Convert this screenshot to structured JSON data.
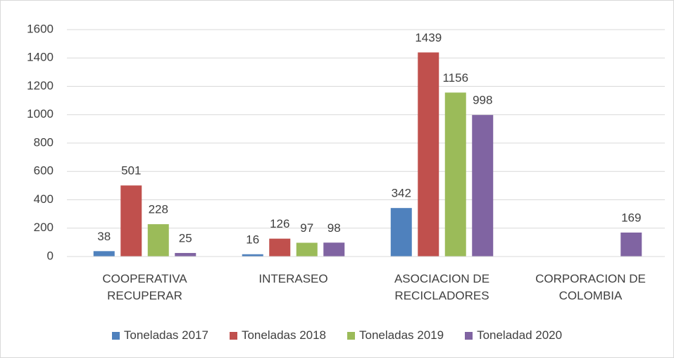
{
  "chart_data": {
    "type": "bar",
    "categories": [
      "COOPERATIVA RECUPERAR",
      "INTERASEO",
      "ASOCIACION DE RECICLADORES",
      "CORPORACION DE COLOMBIA"
    ],
    "series": [
      {
        "name": "Toneladas 2017",
        "color": "#4f81bd",
        "values": [
          38,
          16,
          342,
          null
        ]
      },
      {
        "name": "Toneladas 2018",
        "color": "#c0504d",
        "values": [
          501,
          126,
          1439,
          null
        ]
      },
      {
        "name": "Toneladas 2019",
        "color": "#9bbb59",
        "values": [
          228,
          97,
          1156,
          null
        ]
      },
      {
        "name": "Toneladad 2020",
        "color": "#8064a2",
        "values": [
          25,
          98,
          998,
          169
        ]
      }
    ],
    "ylim": [
      0,
      1600
    ],
    "yticks": [
      0,
      200,
      400,
      600,
      800,
      1000,
      1200,
      1400,
      1600
    ],
    "grid": true,
    "legend": "bottom"
  }
}
